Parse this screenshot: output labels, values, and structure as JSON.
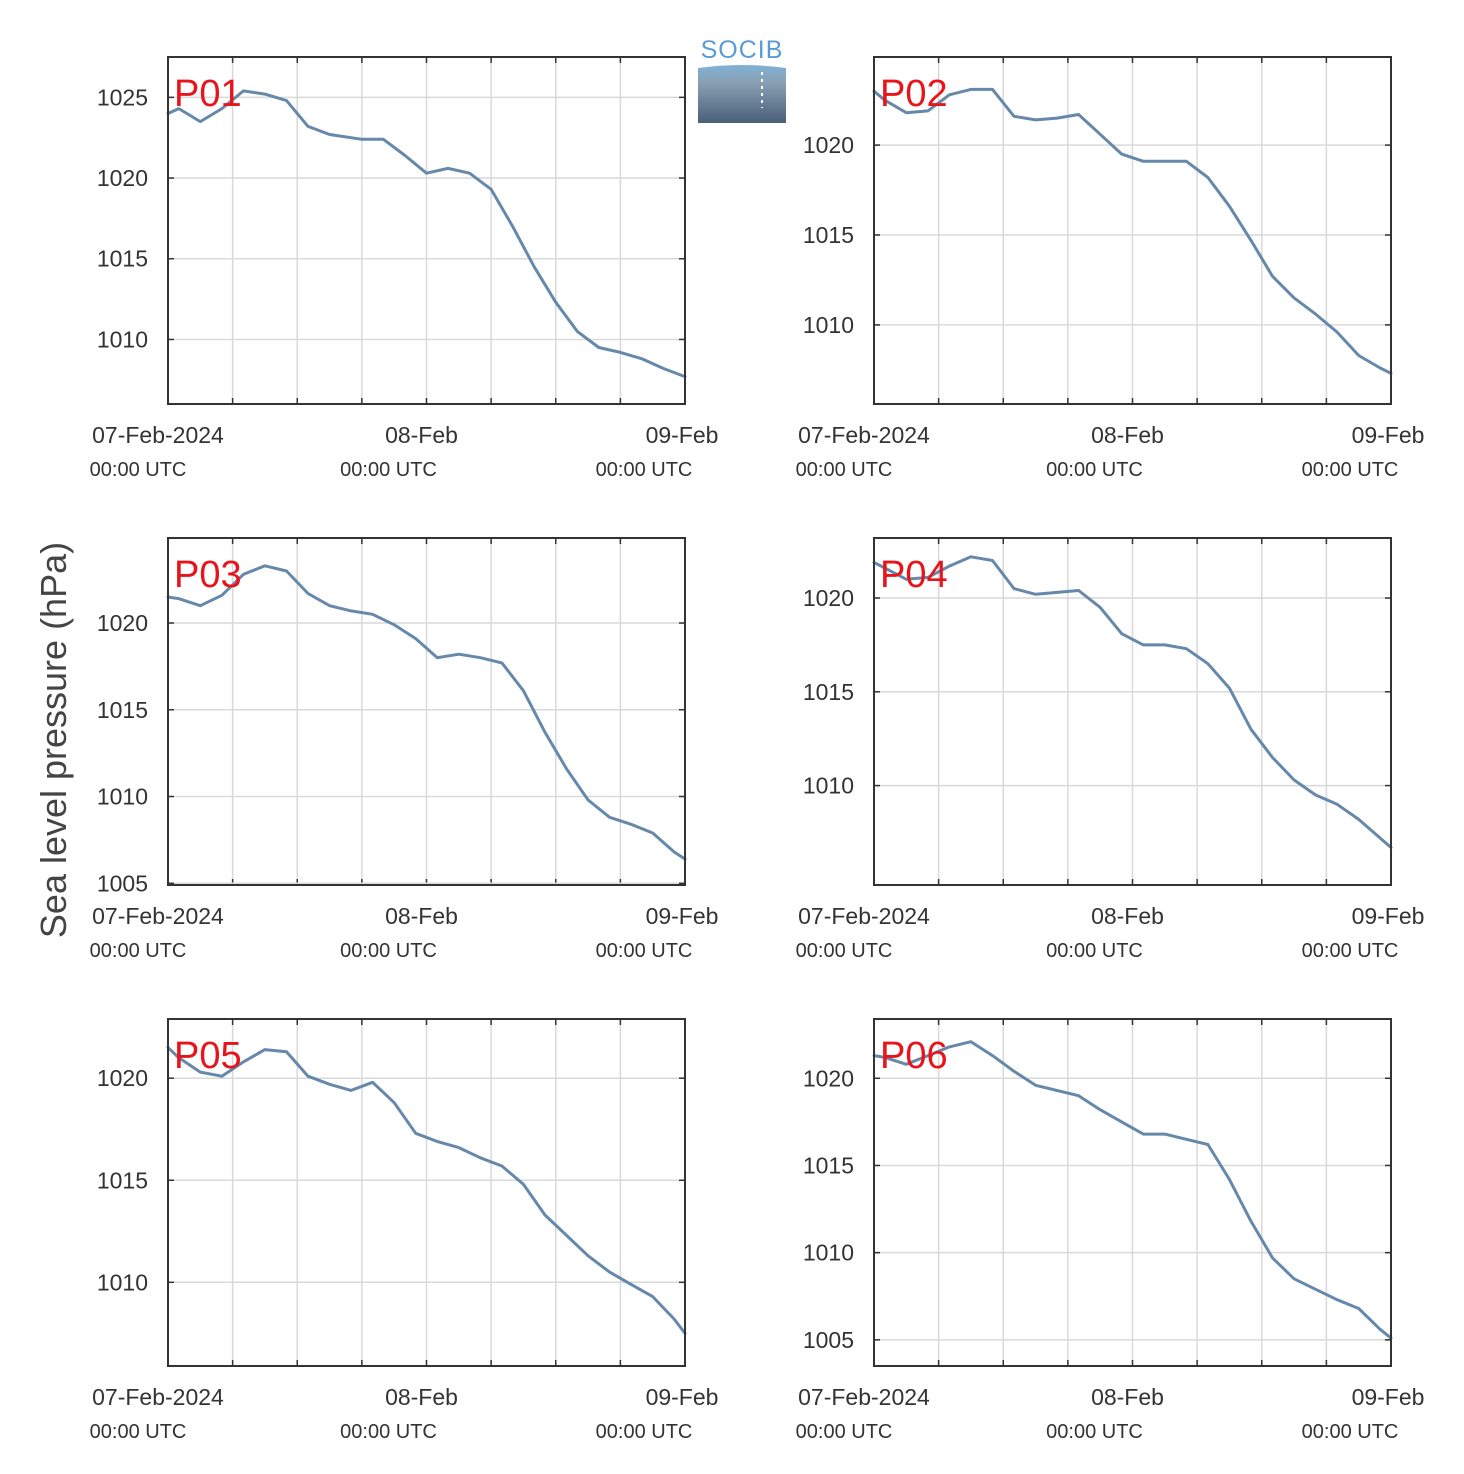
{
  "figure": {
    "ylabel": "Sea level pressure (hPa)",
    "logo_text": "SOCIB",
    "line_color": "#6688aa",
    "label_color": "#e8141b",
    "grid_color": "#d9d9d9",
    "axis_color": "#333333"
  },
  "chart_data": [
    {
      "type": "line",
      "label": "P01",
      "x_range": [
        "2024-02-07 00:00",
        "2024-02-09 00:00"
      ],
      "xtick_labels": [
        "07-Feb-2024",
        "08-Feb",
        "09-Feb"
      ],
      "xtick_sublabels": [
        "00:00 UTC",
        "00:00 UTC",
        "00:00 UTC"
      ],
      "yticks": [
        1010,
        1015,
        1020,
        1025
      ],
      "ylim": [
        1006,
        1027.5
      ],
      "grid": true,
      "x_hours": [
        0,
        1,
        3,
        5,
        7,
        9,
        11,
        13,
        15,
        18,
        20,
        22,
        24,
        26,
        28,
        30,
        32,
        34,
        36,
        38,
        40,
        42,
        44,
        46,
        48
      ],
      "y": [
        1024.0,
        1024.3,
        1023.5,
        1024.3,
        1025.4,
        1025.2,
        1024.8,
        1023.2,
        1022.7,
        1022.4,
        1022.4,
        1021.4,
        1020.3,
        1020.6,
        1020.3,
        1019.3,
        1017.0,
        1014.5,
        1012.3,
        1010.5,
        1009.5,
        1009.2,
        1008.8,
        1008.2,
        1007.7
      ]
    },
    {
      "type": "line",
      "label": "P02",
      "x_range": [
        "2024-02-07 00:00",
        "2024-02-09 00:00"
      ],
      "xtick_labels": [
        "07-Feb-2024",
        "08-Feb",
        "09-Feb"
      ],
      "xtick_sublabels": [
        "00:00 UTC",
        "00:00 UTC",
        "00:00 UTC"
      ],
      "yticks": [
        1010,
        1015,
        1020
      ],
      "ylim": [
        1005.6,
        1024.9
      ],
      "grid": true,
      "x_hours": [
        0,
        1,
        3,
        5,
        7,
        9,
        11,
        13,
        15,
        17,
        19,
        21,
        23,
        25,
        27,
        29,
        31,
        33,
        35,
        37,
        39,
        41,
        43,
        45,
        47,
        48
      ],
      "y": [
        1023.0,
        1022.5,
        1021.8,
        1021.9,
        1022.8,
        1023.1,
        1023.1,
        1021.6,
        1021.4,
        1021.5,
        1021.7,
        1020.6,
        1019.5,
        1019.1,
        1019.1,
        1019.1,
        1018.2,
        1016.6,
        1014.7,
        1012.7,
        1011.5,
        1010.6,
        1009.6,
        1008.3,
        1007.6,
        1007.3
      ]
    },
    {
      "type": "line",
      "label": "P03",
      "x_range": [
        "2024-02-07 00:00",
        "2024-02-09 00:00"
      ],
      "xtick_labels": [
        "07-Feb-2024",
        "08-Feb",
        "09-Feb"
      ],
      "xtick_sublabels": [
        "00:00 UTC",
        "00:00 UTC",
        "00:00 UTC"
      ],
      "yticks": [
        1005,
        1010,
        1015,
        1020
      ],
      "ylim": [
        1004.9,
        1024.9
      ],
      "grid": true,
      "x_hours": [
        0,
        1,
        3,
        5,
        7,
        9,
        11,
        13,
        15,
        17,
        19,
        21,
        23,
        25,
        27,
        29,
        31,
        33,
        35,
        37,
        39,
        41,
        43,
        45,
        47,
        48
      ],
      "y": [
        1021.5,
        1021.4,
        1021.0,
        1021.6,
        1022.8,
        1023.3,
        1023.0,
        1021.7,
        1021.0,
        1020.7,
        1020.5,
        1019.9,
        1019.1,
        1018.0,
        1018.2,
        1018.0,
        1017.7,
        1016.1,
        1013.7,
        1011.6,
        1009.8,
        1008.8,
        1008.4,
        1007.9,
        1006.8,
        1006.4
      ]
    },
    {
      "type": "line",
      "label": "P04",
      "x_range": [
        "2024-02-07 00:00",
        "2024-02-09 00:00"
      ],
      "xtick_labels": [
        "07-Feb-2024",
        "08-Feb",
        "09-Feb"
      ],
      "xtick_sublabels": [
        "00:00 UTC",
        "00:00 UTC",
        "00:00 UTC"
      ],
      "yticks": [
        1010,
        1015,
        1020
      ],
      "ylim": [
        1004.7,
        1023.2
      ],
      "grid": true,
      "x_hours": [
        0,
        1,
        3,
        5,
        7,
        9,
        11,
        13,
        15,
        17,
        19,
        21,
        23,
        25,
        27,
        29,
        31,
        33,
        35,
        37,
        39,
        41,
        43,
        45,
        47,
        48
      ],
      "y": [
        1021.9,
        1021.6,
        1021.0,
        1021.1,
        1021.7,
        1022.2,
        1022.0,
        1020.5,
        1020.2,
        1020.3,
        1020.4,
        1019.5,
        1018.1,
        1017.5,
        1017.5,
        1017.3,
        1016.5,
        1015.2,
        1013.0,
        1011.5,
        1010.3,
        1009.5,
        1009.0,
        1008.2,
        1007.2,
        1006.7
      ]
    },
    {
      "type": "line",
      "label": "P05",
      "x_range": [
        "2024-02-07 00:00",
        "2024-02-09 00:00"
      ],
      "xtick_labels": [
        "07-Feb-2024",
        "08-Feb",
        "09-Feb"
      ],
      "xtick_sublabels": [
        "00:00 UTC",
        "00:00 UTC",
        "00:00 UTC"
      ],
      "yticks": [
        1010,
        1015,
        1020
      ],
      "ylim": [
        1005.9,
        1022.9
      ],
      "grid": true,
      "x_hours": [
        0,
        1,
        3,
        5,
        7,
        9,
        11,
        13,
        15,
        17,
        19,
        21,
        23,
        25,
        27,
        29,
        31,
        33,
        35,
        37,
        39,
        41,
        43,
        45,
        47,
        48
      ],
      "y": [
        1021.5,
        1021.0,
        1020.3,
        1020.1,
        1020.8,
        1021.4,
        1021.3,
        1020.1,
        1019.7,
        1019.4,
        1019.8,
        1018.8,
        1017.3,
        1016.9,
        1016.6,
        1016.1,
        1015.7,
        1014.8,
        1013.3,
        1012.3,
        1011.3,
        1010.5,
        1009.9,
        1009.3,
        1008.2,
        1007.5
      ]
    },
    {
      "type": "line",
      "label": "P06",
      "x_range": [
        "2024-02-07 00:00",
        "2024-02-09 00:00"
      ],
      "xtick_labels": [
        "07-Feb-2024",
        "08-Feb",
        "09-Feb"
      ],
      "xtick_sublabels": [
        "00:00 UTC",
        "00:00 UTC",
        "00:00 UTC"
      ],
      "yticks": [
        1005,
        1010,
        1015,
        1020
      ],
      "ylim": [
        1003.5,
        1023.4
      ],
      "grid": true,
      "x_hours": [
        0,
        1,
        3,
        5,
        7,
        9,
        11,
        13,
        15,
        17,
        19,
        21,
        23,
        25,
        27,
        29,
        31,
        33,
        35,
        37,
        39,
        41,
        43,
        45,
        47,
        48
      ],
      "y": [
        1021.3,
        1021.2,
        1020.8,
        1021.3,
        1021.8,
        1022.1,
        1021.3,
        1020.4,
        1019.6,
        1019.3,
        1019.0,
        1018.2,
        1017.5,
        1016.8,
        1016.8,
        1016.5,
        1016.2,
        1014.2,
        1011.8,
        1009.7,
        1008.5,
        1007.9,
        1007.3,
        1006.8,
        1005.6,
        1005.1
      ]
    }
  ]
}
